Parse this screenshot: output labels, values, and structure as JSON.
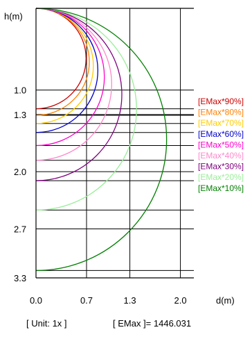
{
  "chart_data": {
    "type": "line",
    "title": "",
    "ylabel": "h(m)",
    "xlabel": "d(m)",
    "ylim": [
      0,
      3.3
    ],
    "xlim": [
      0,
      2.7
    ],
    "x_ticks": [
      {
        "value": 0.0,
        "label": "0.0"
      },
      {
        "value": 0.7,
        "label": "0.7"
      },
      {
        "value": 1.3,
        "label": "1.3"
      },
      {
        "value": 2.0,
        "label": "2.0"
      }
    ],
    "y_ticks": [
      {
        "value": 1.0,
        "label": "1.0"
      },
      {
        "value": 1.3,
        "label": "1.3"
      },
      {
        "value": 2.0,
        "label": "2.0"
      },
      {
        "value": 2.7,
        "label": "2.7"
      },
      {
        "value": 3.3,
        "label": "3.3"
      }
    ],
    "grid": true,
    "legend_position": "right",
    "series": [
      {
        "name": "[EMax*90%]",
        "color": "#cc0000",
        "extent_h": 1.23
      },
      {
        "name": "[EMax*80%]",
        "color": "#ff8000",
        "extent_h": 1.31
      },
      {
        "name": "[EMax*70%]",
        "color": "#ffcc00",
        "extent_h": 1.41
      },
      {
        "name": "[EMax*60%]",
        "color": "#0000cc",
        "extent_h": 1.52
      },
      {
        "name": "[EMax*50%]",
        "color": "#ff00cc",
        "extent_h": 1.68
      },
      {
        "name": "[EMax*40%]",
        "color": "#ff88cc",
        "extent_h": 1.86
      },
      {
        "name": "[EMax*30%]",
        "color": "#800080",
        "extent_h": 2.11
      },
      {
        "name": "[EMax*20%]",
        "color": "#99ee99",
        "extent_h": 2.47
      },
      {
        "name": "[EMax*10%]",
        "color": "#008000",
        "extent_h": 3.21
      }
    ]
  },
  "footer": {
    "unit": "[ Unit: 1x ]",
    "emax": "[ EMax ]= 1446.031"
  }
}
